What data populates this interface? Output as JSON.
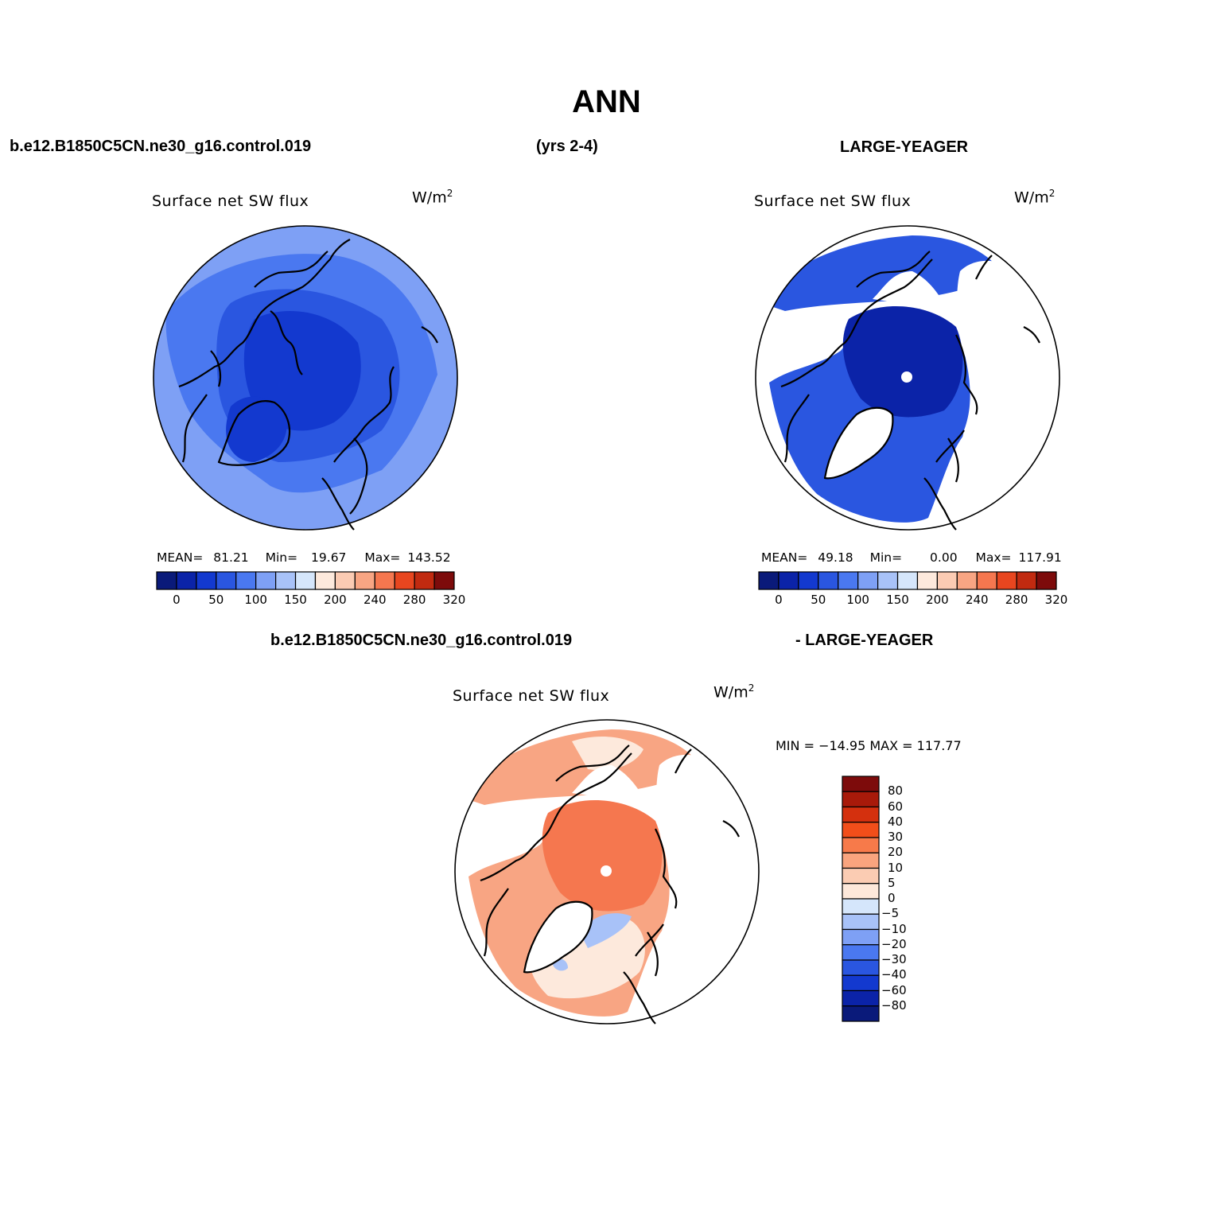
{
  "header": {
    "title": "ANN",
    "case_name": "b.e12.B1850C5CN.ne30_g16.control.019",
    "years": "(yrs 2-4)",
    "obs_name": "LARGE-YEAGER",
    "diff_case_name": "b.e12.B1850C5CN.ne30_g16.control.019",
    "diff_obs_name": "- LARGE-YEAGER"
  },
  "panels": [
    {
      "id": "model",
      "title": "Surface net SW flux",
      "units_base": "W/m",
      "units_exp": "2",
      "stats": {
        "mean_label": "MEAN=",
        "mean": "81.21",
        "min_label": "Min=",
        "min": "19.67",
        "max_label": "Max=",
        "max": "143.52"
      }
    },
    {
      "id": "obs",
      "title": "Surface net SW flux",
      "units_base": "W/m",
      "units_exp": "2",
      "stats": {
        "mean_label": "MEAN=",
        "mean": "49.18",
        "min_label": "Min=",
        "min": "0.00",
        "max_label": "Max=",
        "max": "117.91"
      }
    },
    {
      "id": "diff",
      "title": "Surface net SW flux",
      "units_base": "W/m",
      "units_exp": "2",
      "minmax": "MIN = −14.95 MAX = 117.77"
    }
  ],
  "colorbar_horizontal": {
    "colors": [
      "#0a1a7a",
      "#0b23a8",
      "#1339cf",
      "#2a56e0",
      "#4a78f0",
      "#7ea0f5",
      "#a8c2f8",
      "#d5e6fb",
      "#fde9dc",
      "#fbcbb3",
      "#f8a583",
      "#f5774f",
      "#e8461f",
      "#c12a10",
      "#7d0b0b"
    ],
    "tick_labels": [
      "0",
      "50",
      "100",
      "150",
      "200",
      "240",
      "280",
      "320"
    ]
  },
  "colorbar_vertical": {
    "colors_top_to_bottom": [
      "#7d0b0b",
      "#a81a0a",
      "#d4300e",
      "#f24e1a",
      "#f77a4a",
      "#f9a47e",
      "#fbccb3",
      "#fde8da",
      "#d5e6fb",
      "#a8c2f8",
      "#7ea0f5",
      "#4a78f0",
      "#2a56e0",
      "#1339cf",
      "#0b23a8",
      "#0a1a7a"
    ],
    "labels_top_to_bottom": [
      "80",
      "60",
      "40",
      "30",
      "20",
      "10",
      "5",
      "0",
      "−5",
      "−10",
      "−20",
      "−30",
      "−40",
      "−60",
      "−80"
    ]
  },
  "map_colors": {
    "model_ocean": "#7ea0f5",
    "model_mid": "#4a78f0",
    "model_inner": "#2a56e0",
    "model_core": "#1339cf",
    "obs_outer": "#2a56e0",
    "obs_core": "#0b23a8",
    "diff_base": "#f8a583",
    "diff_arctic": "#f5774f",
    "diff_light": "#fde9dc",
    "diff_blue": "#a8c2f8",
    "land_mask": "#ffffff"
  }
}
